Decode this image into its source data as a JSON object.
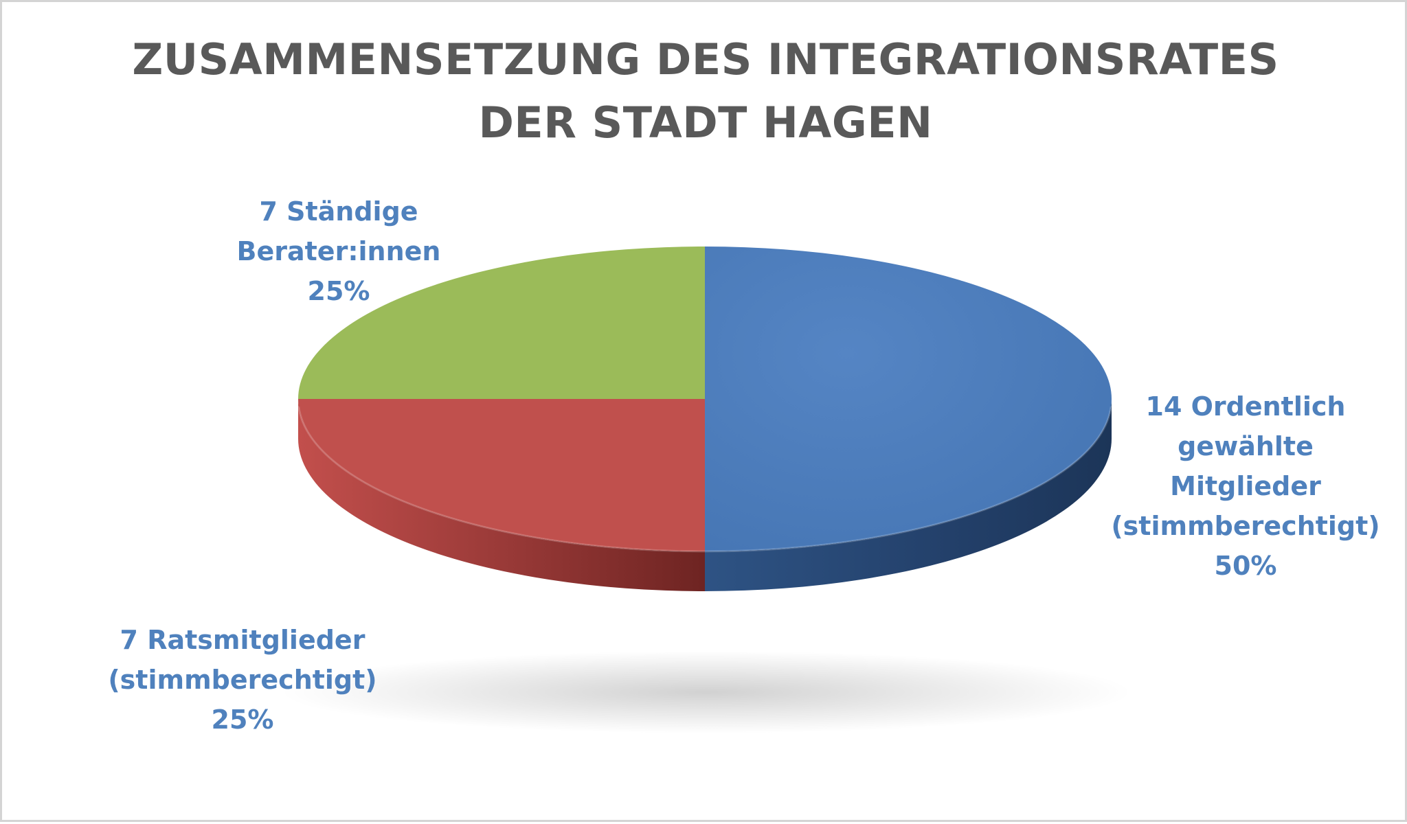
{
  "chart_data": {
    "type": "pie",
    "title_lines": [
      "ZUSAMMENSETZUNG DES INTEGRATIONSRATES",
      "DER STADT HAGEN"
    ],
    "slices": [
      {
        "label_lines": [
          "14 Ordentlich",
          "gewählte",
          "Mitglieder",
          "(stimmberechtigt)"
        ],
        "count": 14,
        "percent_text": "50%",
        "value": 50,
        "color": "#4f81bd"
      },
      {
        "label_lines": [
          "7 Ratsmitglieder",
          "(stimmberechtigt)"
        ],
        "count": 7,
        "percent_text": "25%",
        "value": 25,
        "color": "#c0504d"
      },
      {
        "label_lines": [
          "7 Ständige",
          "Berater:innen"
        ],
        "count": 7,
        "percent_text": "25%",
        "value": 25,
        "color": "#9bbb59"
      }
    ],
    "label_color": "#4f81bd",
    "style": "3d-pie"
  }
}
